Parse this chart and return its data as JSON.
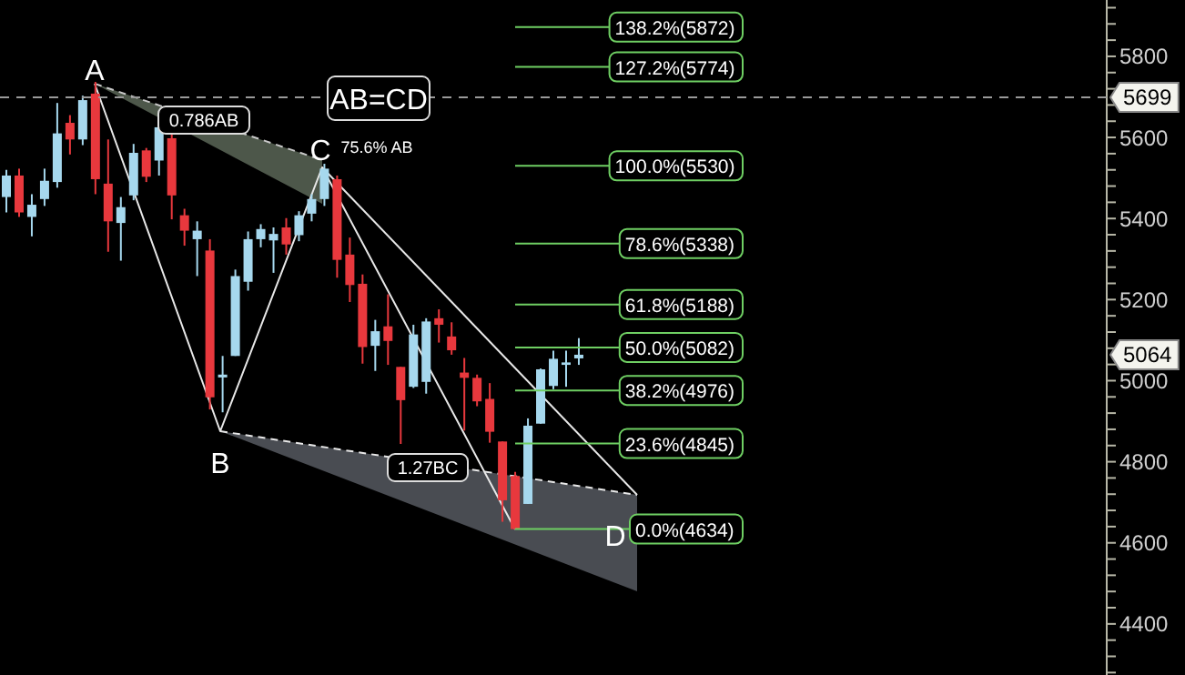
{
  "chart_data": {
    "type": "candlestick",
    "tick_labels": "y",
    "categories": [
      null,
      null,
      null,
      null,
      null,
      null,
      null,
      null,
      null,
      null,
      null,
      null,
      null,
      null,
      null,
      null,
      null,
      null,
      null,
      null,
      null,
      null,
      null,
      null,
      null,
      null,
      null,
      null,
      null,
      null,
      null,
      null,
      null,
      null,
      null,
      null,
      null,
      null,
      null,
      null,
      null,
      null,
      null,
      null,
      null,
      null,
      null,
      null,
      null,
      null,
      null,
      null,
      null,
      null,
      null,
      null,
      null,
      null,
      null,
      null,
      null,
      null,
      null,
      null,
      null,
      null,
      null,
      null,
      null,
      null,
      null,
      null,
      null,
      null,
      null,
      null,
      null,
      null,
      null,
      null,
      null,
      null,
      null,
      null,
      null,
      null,
      null
    ],
    "ohlc": [
      [
        5453,
        5520,
        5415,
        5506
      ],
      [
        5506,
        5523,
        5404,
        5415
      ],
      [
        5404,
        5460,
        5356,
        5434
      ],
      [
        5448,
        5523,
        5431,
        5493
      ],
      [
        5490,
        5685,
        5476,
        5610
      ],
      [
        5636,
        5655,
        5558,
        5595
      ],
      [
        5595,
        5703,
        5581,
        5692
      ],
      [
        5708,
        5737,
        5460,
        5497
      ],
      [
        5486,
        5595,
        5318,
        5393
      ],
      [
        5389,
        5453,
        5296,
        5428
      ],
      [
        5457,
        5584,
        5445,
        5562
      ],
      [
        5568,
        5574,
        5490,
        5503
      ],
      [
        5543,
        5633,
        5506,
        5625
      ],
      [
        5598,
        5617,
        5398,
        5457
      ],
      [
        5408,
        5424,
        5333,
        5370
      ],
      [
        5349,
        5393,
        5258,
        5370
      ],
      [
        5321,
        5349,
        4929,
        4959
      ],
      [
        5008,
        5061,
        4922,
        5015
      ],
      [
        5061,
        5274,
        5061,
        5258
      ],
      [
        5244,
        5368,
        5222,
        5349
      ],
      [
        5349,
        5386,
        5329,
        5374
      ],
      [
        5346,
        5378,
        5266,
        5362
      ],
      [
        5378,
        5401,
        5311,
        5336
      ],
      [
        5359,
        5418,
        5344,
        5408
      ],
      [
        5412,
        5460,
        5393,
        5448
      ],
      [
        5448,
        5535,
        5431,
        5523
      ],
      [
        5497,
        5506,
        5254,
        5298
      ],
      [
        5311,
        5353,
        5194,
        5236
      ],
      [
        5239,
        5262,
        5042,
        5083
      ],
      [
        5086,
        5150,
        5024,
        5122
      ],
      [
        5134,
        5213,
        5039,
        5098
      ],
      [
        5034,
        5034,
        4844,
        4952
      ],
      [
        4985,
        5138,
        4982,
        5114
      ],
      [
        4997,
        5154,
        4968,
        5146
      ],
      [
        5154,
        5176,
        5094,
        5138
      ],
      [
        5109,
        5144,
        5064,
        5075
      ],
      [
        5020,
        5056,
        4877,
        5007
      ],
      [
        5007,
        5015,
        4937,
        4949
      ],
      [
        4955,
        4994,
        4847,
        4874
      ],
      [
        4850,
        4850,
        4652,
        4705
      ],
      [
        4765,
        4775,
        4634,
        4634
      ],
      [
        4696,
        4907,
        4696,
        4889
      ],
      [
        4894,
        5030,
        4894,
        5028
      ],
      [
        4987,
        5074,
        4979,
        5054
      ],
      [
        5039,
        5074,
        4985,
        5045
      ],
      [
        5055,
        5105,
        5039,
        5064
      ],
      null,
      null,
      null,
      null,
      null,
      null,
      null,
      null,
      null,
      null,
      null,
      null,
      null,
      null,
      null,
      null,
      null,
      null,
      null,
      null,
      null,
      null,
      null,
      null,
      null,
      null,
      null,
      null,
      null,
      null,
      null,
      null,
      null,
      null,
      null,
      null,
      null,
      null,
      null,
      null,
      null
    ],
    "colors": [
      "#a6d8ee",
      "#e8383d",
      "#a6d8ee",
      "#a6d8ee",
      "#a6d8ee",
      "#e8383d",
      "#a6d8ee",
      "#e8383d",
      "#e8383d",
      "#a6d8ee",
      "#a6d8ee",
      "#e8383d",
      "#a6d8ee",
      "#e8383d",
      "#e8383d",
      "#a6d8ee",
      "#e8383d",
      "#a6d8ee",
      "#a6d8ee",
      "#a6d8ee",
      "#a6d8ee",
      "#a6d8ee",
      "#e8383d",
      "#a6d8ee",
      "#a6d8ee",
      "#a6d8ee",
      "#e8383d",
      "#e8383d",
      "#e8383d",
      "#a6d8ee",
      "#e8383d",
      "#e8383d",
      "#a6d8ee",
      "#a6d8ee",
      "#e8383d",
      "#e8383d",
      "#e8383d",
      "#e8383d",
      "#e8383d",
      "#e8383d",
      "#e8383d",
      "#a6d8ee",
      "#a6d8ee",
      "#a6d8ee",
      "#a6d8ee",
      "#a6d8ee",
      null,
      null,
      null,
      null,
      null,
      null,
      null,
      null,
      null,
      null,
      null,
      null,
      null,
      null,
      null,
      null,
      null,
      null,
      null,
      null,
      null,
      null,
      null,
      null,
      null,
      null,
      null,
      null,
      null,
      null,
      null,
      null,
      null,
      null,
      null,
      null,
      null,
      null,
      null,
      null,
      null
    ],
    "ylim": [
      4274,
      5939
    ],
    "yticks": [
      {
        "value": 4280,
        "label": null
      },
      {
        "value": 4320,
        "label": null
      },
      {
        "value": 4360,
        "label": null
      },
      4400,
      {
        "value": 4440,
        "label": null
      },
      {
        "value": 4480,
        "label": null
      },
      {
        "value": 4520,
        "label": null
      },
      {
        "value": 4560,
        "label": null
      },
      4600,
      {
        "value": 4640,
        "label": null
      },
      {
        "value": 4680,
        "label": null
      },
      {
        "value": 4720,
        "label": null
      },
      {
        "value": 4760,
        "label": null
      },
      4800,
      {
        "value": 4840,
        "label": null
      },
      {
        "value": 4880,
        "label": null
      },
      {
        "value": 4920,
        "label": null
      },
      {
        "value": 4960,
        "label": null
      },
      5000,
      {
        "value": 5040,
        "label": null
      },
      {
        "value": 5080,
        "label": null
      },
      {
        "value": 5120,
        "label": null
      },
      {
        "value": 5160,
        "label": null
      },
      5200,
      {
        "value": 5240,
        "label": null
      },
      {
        "value": 5280,
        "label": null
      },
      {
        "value": 5320,
        "label": null
      },
      {
        "value": 5360,
        "label": null
      },
      5400,
      {
        "value": 5440,
        "label": null
      },
      {
        "value": 5480,
        "label": null
      },
      {
        "value": 5520,
        "label": null
      },
      {
        "value": 5560,
        "label": null
      },
      5600,
      {
        "value": 5640,
        "label": null
      },
      {
        "value": 5680,
        "label": null
      },
      {
        "value": 5720,
        "label": null
      },
      {
        "value": 5760,
        "label": null
      },
      5800,
      {
        "value": 5840,
        "label": null
      },
      {
        "value": 5880,
        "label": null
      },
      {
        "value": 5920,
        "label": null
      }
    ],
    "ref_lines": [
      {
        "axis": "y",
        "value": 5872,
        "label": "138.2%(5872)",
        "color": "#6fcf63",
        "line_style": "solid"
      },
      {
        "axis": "y",
        "value": 5774,
        "label": "127.2%(5774)",
        "color": "#6fcf63",
        "line_style": "solid"
      },
      {
        "axis": "y",
        "value": 5530,
        "label": "100.0%(5530)",
        "color": "#6fcf63",
        "line_style": "solid"
      },
      {
        "axis": "y",
        "value": 5338,
        "label": "78.6%(5338)",
        "color": "#6fcf63",
        "line_style": "solid"
      },
      {
        "axis": "y",
        "value": 5188,
        "label": "61.8%(5188)",
        "color": "#6fcf63",
        "line_style": "solid"
      },
      {
        "axis": "y",
        "value": 5082,
        "label": "50.0%(5082)",
        "color": "#6fcf63",
        "line_style": "solid"
      },
      {
        "axis": "y",
        "value": 4976,
        "label": "38.2%(4976)",
        "color": "#6fcf63",
        "line_style": "solid"
      },
      {
        "axis": "y",
        "value": 4845,
        "label": "23.6%(4845)",
        "color": "#6fcf63",
        "line_style": "solid"
      },
      {
        "axis": "y",
        "value": 4634,
        "label": "0.0%(4634)",
        "color": "#6fcf63",
        "line_style": "solid"
      },
      {
        "axis": "y",
        "value": 5699,
        "label": "5699",
        "color": "#9a9a9a",
        "line_style": "dashed"
      }
    ],
    "annotations": [
      "A",
      "B",
      "C",
      "D",
      "AB=CD",
      "0.786AB",
      "75.6% AB",
      "1.27BC",
      {
        "text": "5064",
        "y": 5064
      }
    ]
  }
}
